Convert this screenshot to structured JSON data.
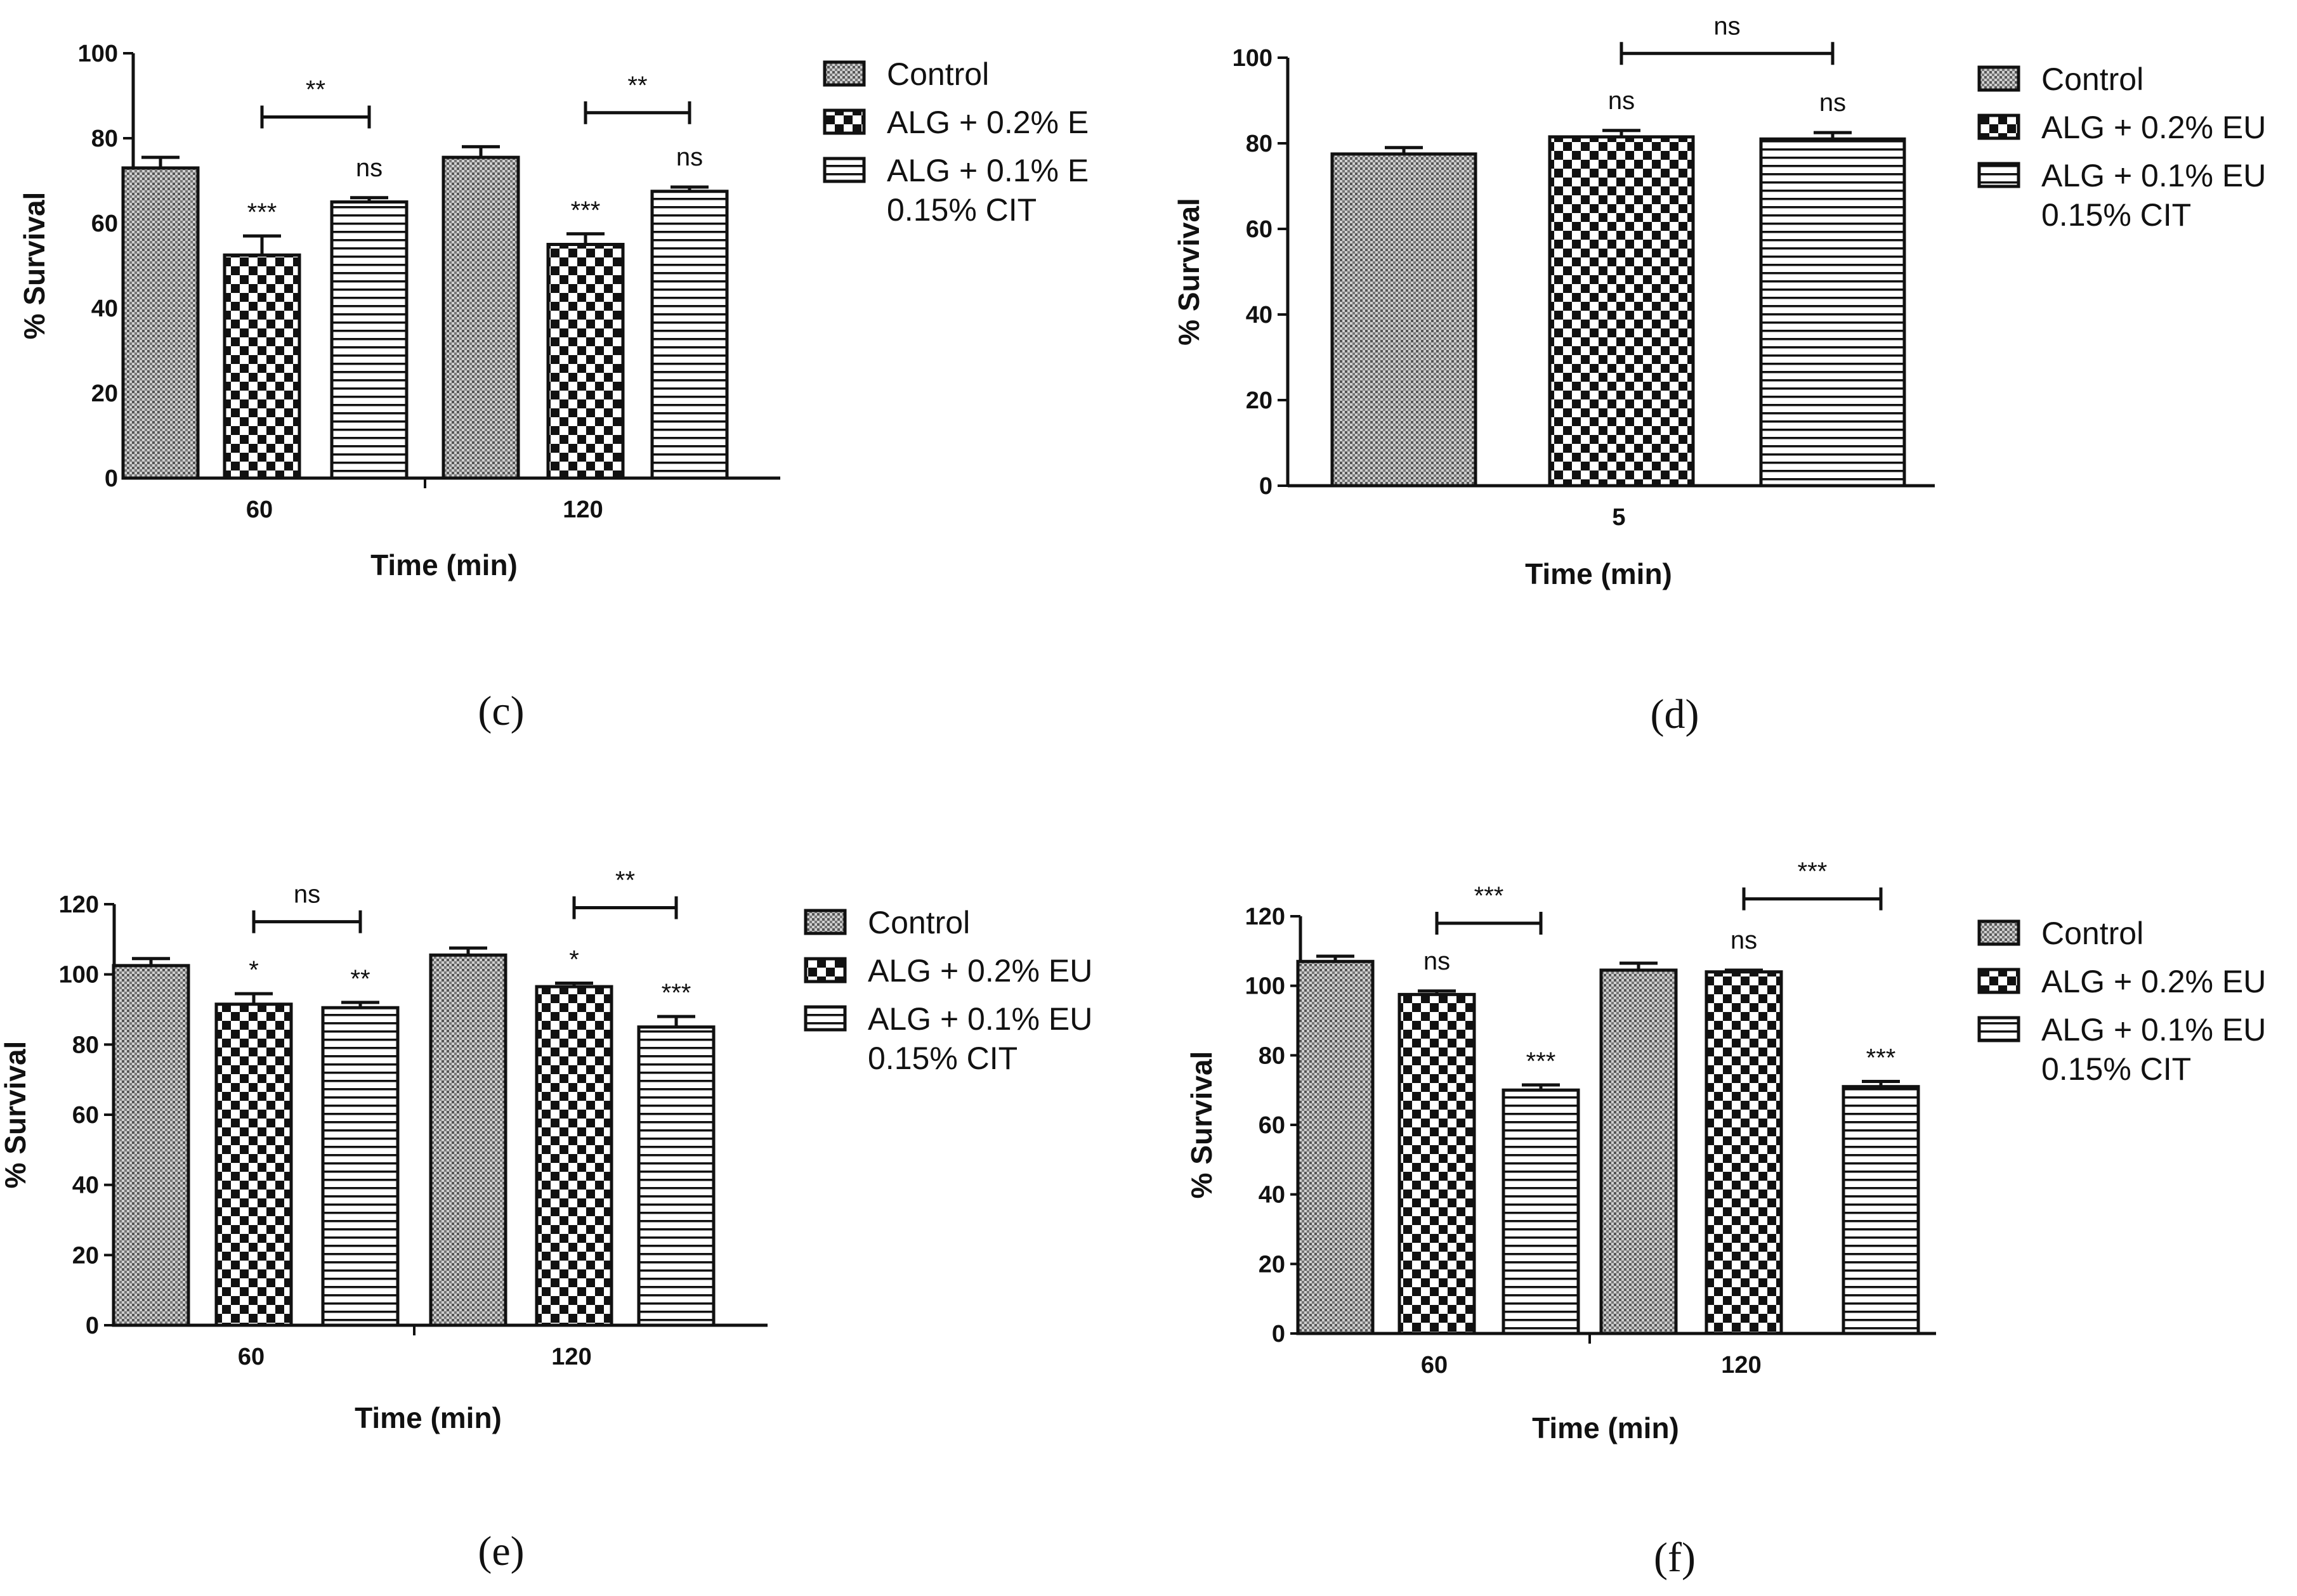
{
  "chart_data": [
    {
      "id": "c",
      "type": "bar",
      "panel_label": "(c)",
      "xlabel": "Time (min)",
      "ylabel": "% Survival",
      "ylim": [
        0,
        100
      ],
      "yticks": [
        "0",
        "20",
        "40",
        "60",
        "80",
        "100"
      ],
      "categories": [
        "60",
        "120"
      ],
      "series": [
        {
          "name": "Control",
          "values": [
            73,
            75.5
          ],
          "errors": [
            2.5,
            2.5
          ],
          "annotations": [
            "",
            ""
          ]
        },
        {
          "name": "ALG + 0.2% E",
          "values": [
            52.5,
            55
          ],
          "errors": [
            4.5,
            2.5
          ],
          "annotations": [
            "***",
            "***"
          ]
        },
        {
          "name": "ALG + 0.1% E\n0.15% CIT",
          "values": [
            65,
            67.5
          ],
          "errors": [
            1,
            1
          ],
          "annotations": [
            "ns",
            "ns"
          ]
        }
      ],
      "legend": [
        "Control",
        "ALG + 0.2% E",
        "ALG + 0.1% E",
        "0.15% CIT"
      ],
      "brackets": [
        {
          "category": 0,
          "from": 1,
          "to": 2,
          "y": 85,
          "label": "**"
        },
        {
          "category": 1,
          "from": 1,
          "to": 2,
          "y": 86,
          "label": "**"
        }
      ]
    },
    {
      "id": "d",
      "type": "bar",
      "panel_label": "(d)",
      "xlabel": "Time (min)",
      "ylabel": "% Survival",
      "ylim": [
        0,
        100
      ],
      "yticks": [
        "0",
        "20",
        "40",
        "60",
        "80",
        "100"
      ],
      "categories": [
        "5"
      ],
      "series": [
        {
          "name": "Control",
          "values": [
            77.5
          ],
          "errors": [
            1.5
          ],
          "annotations": [
            ""
          ]
        },
        {
          "name": "ALG + 0.2% EU",
          "values": [
            81.5
          ],
          "errors": [
            1.5
          ],
          "annotations": [
            "ns"
          ]
        },
        {
          "name": "ALG + 0.1% EU\n0.15% CIT",
          "values": [
            81
          ],
          "errors": [
            1.5
          ],
          "annotations": [
            "ns"
          ]
        }
      ],
      "legend": [
        "Control",
        "ALG + 0.2% EU",
        "ALG + 0.1% EU",
        "0.15% CIT"
      ],
      "brackets": [
        {
          "category": 0,
          "from": 1,
          "to": 2,
          "y": 101,
          "label": "ns"
        }
      ]
    },
    {
      "id": "e",
      "type": "bar",
      "panel_label": "(e)",
      "xlabel": "Time (min)",
      "ylabel": "% Survival",
      "ylim": [
        0,
        120
      ],
      "yticks": [
        "0",
        "20",
        "40",
        "60",
        "80",
        "100",
        "120"
      ],
      "categories": [
        "60",
        "120"
      ],
      "series": [
        {
          "name": "Control",
          "values": [
            102.5,
            105.5
          ],
          "errors": [
            2,
            2
          ],
          "annotations": [
            "",
            ""
          ]
        },
        {
          "name": "ALG + 0.2% EU",
          "values": [
            91.5,
            96.5
          ],
          "errors": [
            3,
            1
          ],
          "annotations": [
            "*",
            "*"
          ]
        },
        {
          "name": "ALG + 0.1% EU\n0.15% CIT",
          "values": [
            90.5,
            85
          ],
          "errors": [
            1.5,
            3
          ],
          "annotations": [
            "**",
            "***"
          ]
        }
      ],
      "legend": [
        "Control",
        "ALG + 0.2% EU",
        "ALG + 0.1% EU",
        "0.15% CIT"
      ],
      "brackets": [
        {
          "category": 0,
          "from": 1,
          "to": 2,
          "y": 115,
          "label": "ns"
        },
        {
          "category": 1,
          "from": 1,
          "to": 2,
          "y": 119,
          "label": "**"
        }
      ]
    },
    {
      "id": "f",
      "type": "bar",
      "panel_label": "(f)",
      "xlabel": "Time (min)",
      "ylabel": "% Survival",
      "ylim": [
        0,
        120
      ],
      "yticks": [
        "0",
        "20",
        "40",
        "60",
        "80",
        "100",
        "120"
      ],
      "categories": [
        "60",
        "120"
      ],
      "series": [
        {
          "name": "Control",
          "values": [
            107,
            104.5
          ],
          "errors": [
            1.5,
            2
          ],
          "annotations": [
            "",
            ""
          ]
        },
        {
          "name": "ALG + 0.2% EU",
          "values": [
            97.5,
            104
          ],
          "errors": [
            1,
            0.5
          ],
          "annotations": [
            "ns",
            "ns"
          ]
        },
        {
          "name": "ALG + 0.1% EU\n0.15% CIT",
          "values": [
            70,
            71
          ],
          "errors": [
            1.5,
            1.5
          ],
          "annotations": [
            "***",
            "***"
          ]
        }
      ],
      "legend": [
        "Control",
        "ALG + 0.2% EU",
        "ALG + 0.1% EU",
        "0.15% CIT"
      ],
      "brackets": [
        {
          "category": 0,
          "from": 1,
          "to": 2,
          "y": 118,
          "label": "***"
        },
        {
          "category": 1,
          "from": 1,
          "to": 2,
          "y": 125,
          "label": "***"
        }
      ]
    }
  ]
}
